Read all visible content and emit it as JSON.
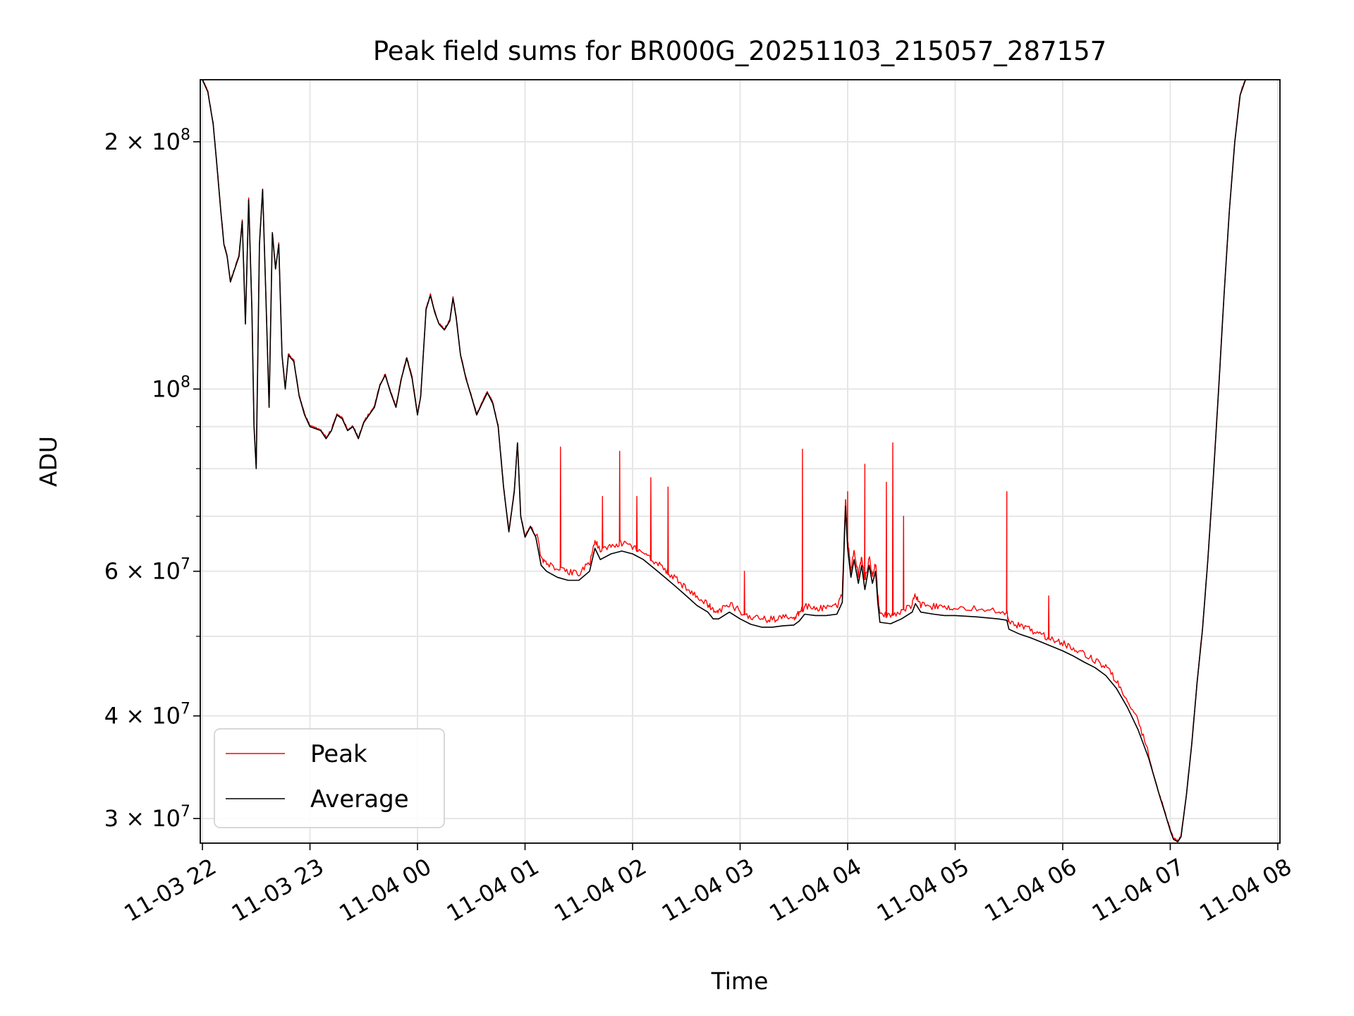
{
  "chart_data": {
    "type": "line",
    "title": "Peak field sums for BR000G_20251103_215057_287157",
    "xlabel": "Time",
    "ylabel": "ADU",
    "x_unit": "hours since 11-03 22:00",
    "xlim": [
      -0.02,
      10.02
    ],
    "ylim": [
      28000000,
      238000000
    ],
    "yscale": "log",
    "grid": true,
    "legend_position": "lower-left",
    "x_ticks": [
      {
        "value": 0,
        "label": "11-03 22"
      },
      {
        "value": 1,
        "label": "11-03 23"
      },
      {
        "value": 2,
        "label": "11-04 00"
      },
      {
        "value": 3,
        "label": "11-04 01"
      },
      {
        "value": 4,
        "label": "11-04 02"
      },
      {
        "value": 5,
        "label": "11-04 03"
      },
      {
        "value": 6,
        "label": "11-04 04"
      },
      {
        "value": 7,
        "label": "11-04 05"
      },
      {
        "value": 8,
        "label": "11-04 06"
      },
      {
        "value": 9,
        "label": "11-04 07"
      },
      {
        "value": 10,
        "label": "11-04 08"
      }
    ],
    "y_ticks_major": [
      {
        "value": 30000000,
        "mantissa": "3",
        "exponent": "7"
      },
      {
        "value": 40000000,
        "mantissa": "4",
        "exponent": "7"
      },
      {
        "value": 60000000,
        "mantissa": "6",
        "exponent": "7"
      },
      {
        "value": 100000000,
        "mantissa": "",
        "exponent": "8"
      },
      {
        "value": 200000000,
        "mantissa": "2",
        "exponent": "8"
      }
    ],
    "y_ticks_minor": [
      50000000,
      70000000,
      80000000,
      90000000
    ],
    "series": [
      {
        "name": "Peak",
        "color": "#ff0000",
        "note": "follows Average with small positive offset and narrow spikes",
        "spikes": [
          [
            3.33,
            85000000
          ],
          [
            3.72,
            74000000
          ],
          [
            3.88,
            84000000
          ],
          [
            4.04,
            74000000
          ],
          [
            4.17,
            78000000
          ],
          [
            4.33,
            76000000
          ],
          [
            5.04,
            60000000
          ],
          [
            5.58,
            84500000
          ],
          [
            6.0,
            75000000
          ],
          [
            6.16,
            81000000
          ],
          [
            6.36,
            77000000
          ],
          [
            6.42,
            86000000
          ],
          [
            6.52,
            70000000
          ],
          [
            7.48,
            75000000
          ],
          [
            7.87,
            56000000
          ]
        ]
      },
      {
        "name": "Average",
        "color": "#000000",
        "points": [
          [
            0.0,
            238000000
          ],
          [
            0.05,
            230000000
          ],
          [
            0.1,
            210000000
          ],
          [
            0.13,
            190000000
          ],
          [
            0.17,
            165000000
          ],
          [
            0.2,
            150000000
          ],
          [
            0.23,
            145000000
          ],
          [
            0.26,
            135000000
          ],
          [
            0.3,
            140000000
          ],
          [
            0.34,
            145000000
          ],
          [
            0.37,
            160000000
          ],
          [
            0.4,
            120000000
          ],
          [
            0.43,
            170000000
          ],
          [
            0.46,
            125000000
          ],
          [
            0.48,
            90000000
          ],
          [
            0.5,
            80000000
          ],
          [
            0.53,
            150000000
          ],
          [
            0.56,
            175000000
          ],
          [
            0.59,
            130000000
          ],
          [
            0.62,
            95000000
          ],
          [
            0.65,
            155000000
          ],
          [
            0.68,
            140000000
          ],
          [
            0.71,
            150000000
          ],
          [
            0.74,
            110000000
          ],
          [
            0.77,
            100000000
          ],
          [
            0.8,
            110000000
          ],
          [
            0.85,
            108000000
          ],
          [
            0.9,
            98000000
          ],
          [
            0.95,
            93000000
          ],
          [
            1.0,
            90000000
          ],
          [
            1.05,
            89500000
          ],
          [
            1.1,
            89000000
          ],
          [
            1.15,
            87000000
          ],
          [
            1.2,
            89000000
          ],
          [
            1.25,
            93000000
          ],
          [
            1.3,
            92000000
          ],
          [
            1.35,
            89000000
          ],
          [
            1.4,
            90000000
          ],
          [
            1.45,
            87000000
          ],
          [
            1.5,
            91000000
          ],
          [
            1.55,
            93000000
          ],
          [
            1.6,
            95000000
          ],
          [
            1.65,
            101000000
          ],
          [
            1.7,
            104000000
          ],
          [
            1.75,
            99000000
          ],
          [
            1.8,
            95000000
          ],
          [
            1.85,
            103000000
          ],
          [
            1.9,
            109000000
          ],
          [
            1.95,
            103000000
          ],
          [
            2.0,
            93000000
          ],
          [
            2.03,
            98000000
          ],
          [
            2.08,
            125000000
          ],
          [
            2.12,
            130000000
          ],
          [
            2.16,
            124000000
          ],
          [
            2.2,
            120000000
          ],
          [
            2.25,
            118000000
          ],
          [
            2.3,
            121000000
          ],
          [
            2.33,
            129000000
          ],
          [
            2.36,
            122000000
          ],
          [
            2.4,
            110000000
          ],
          [
            2.45,
            103000000
          ],
          [
            2.5,
            98000000
          ],
          [
            2.55,
            93000000
          ],
          [
            2.6,
            96000000
          ],
          [
            2.65,
            99000000
          ],
          [
            2.7,
            96000000
          ],
          [
            2.75,
            90000000
          ],
          [
            2.8,
            76000000
          ],
          [
            2.85,
            67000000
          ],
          [
            2.9,
            75000000
          ],
          [
            2.93,
            86000000
          ],
          [
            2.96,
            70000000
          ],
          [
            3.0,
            66000000
          ],
          [
            3.05,
            68000000
          ],
          [
            3.1,
            66000000
          ],
          [
            3.15,
            61000000
          ],
          [
            3.2,
            60000000
          ],
          [
            3.3,
            59000000
          ],
          [
            3.4,
            58500000
          ],
          [
            3.5,
            58500000
          ],
          [
            3.6,
            60000000
          ],
          [
            3.65,
            64000000
          ],
          [
            3.7,
            62000000
          ],
          [
            3.8,
            63000000
          ],
          [
            3.9,
            63500000
          ],
          [
            4.0,
            63000000
          ],
          [
            4.1,
            62000000
          ],
          [
            4.2,
            60500000
          ],
          [
            4.3,
            59000000
          ],
          [
            4.4,
            57500000
          ],
          [
            4.5,
            56000000
          ],
          [
            4.6,
            54500000
          ],
          [
            4.7,
            53500000
          ],
          [
            4.75,
            52500000
          ],
          [
            4.8,
            52500000
          ],
          [
            4.9,
            53500000
          ],
          [
            5.0,
            52500000
          ],
          [
            5.1,
            51700000
          ],
          [
            5.2,
            51300000
          ],
          [
            5.3,
            51300000
          ],
          [
            5.4,
            51500000
          ],
          [
            5.5,
            51600000
          ],
          [
            5.55,
            52200000
          ],
          [
            5.6,
            53200000
          ],
          [
            5.7,
            53000000
          ],
          [
            5.8,
            53000000
          ],
          [
            5.9,
            53200000
          ],
          [
            5.95,
            55000000
          ],
          [
            5.98,
            72000000
          ],
          [
            6.0,
            64000000
          ],
          [
            6.03,
            59000000
          ],
          [
            6.06,
            62000000
          ],
          [
            6.1,
            58000000
          ],
          [
            6.13,
            61000000
          ],
          [
            6.16,
            57000000
          ],
          [
            6.2,
            61000000
          ],
          [
            6.23,
            58000000
          ],
          [
            6.26,
            60000000
          ],
          [
            6.28,
            55000000
          ],
          [
            6.3,
            52000000
          ],
          [
            6.4,
            51800000
          ],
          [
            6.5,
            52500000
          ],
          [
            6.6,
            53500000
          ],
          [
            6.63,
            54800000
          ],
          [
            6.68,
            53500000
          ],
          [
            6.8,
            53200000
          ],
          [
            6.9,
            53000000
          ],
          [
            7.0,
            53000000
          ],
          [
            7.2,
            52800000
          ],
          [
            7.4,
            52500000
          ],
          [
            7.48,
            52300000
          ],
          [
            7.5,
            51000000
          ],
          [
            7.6,
            50300000
          ],
          [
            7.7,
            49800000
          ],
          [
            7.8,
            49200000
          ],
          [
            7.9,
            48600000
          ],
          [
            8.0,
            48000000
          ],
          [
            8.1,
            47300000
          ],
          [
            8.2,
            46500000
          ],
          [
            8.3,
            45800000
          ],
          [
            8.4,
            44800000
          ],
          [
            8.5,
            43200000
          ],
          [
            8.6,
            41000000
          ],
          [
            8.7,
            38500000
          ],
          [
            8.8,
            35500000
          ],
          [
            8.9,
            32000000
          ],
          [
            8.95,
            30500000
          ],
          [
            9.0,
            29000000
          ],
          [
            9.03,
            28300000
          ],
          [
            9.07,
            28100000
          ],
          [
            9.1,
            28500000
          ],
          [
            9.15,
            32000000
          ],
          [
            9.2,
            37000000
          ],
          [
            9.25,
            44000000
          ],
          [
            9.3,
            51000000
          ],
          [
            9.35,
            62000000
          ],
          [
            9.4,
            78000000
          ],
          [
            9.45,
            100000000
          ],
          [
            9.5,
            130000000
          ],
          [
            9.55,
            165000000
          ],
          [
            9.6,
            200000000
          ],
          [
            9.65,
            228000000
          ],
          [
            9.7,
            238000000
          ]
        ]
      }
    ]
  }
}
